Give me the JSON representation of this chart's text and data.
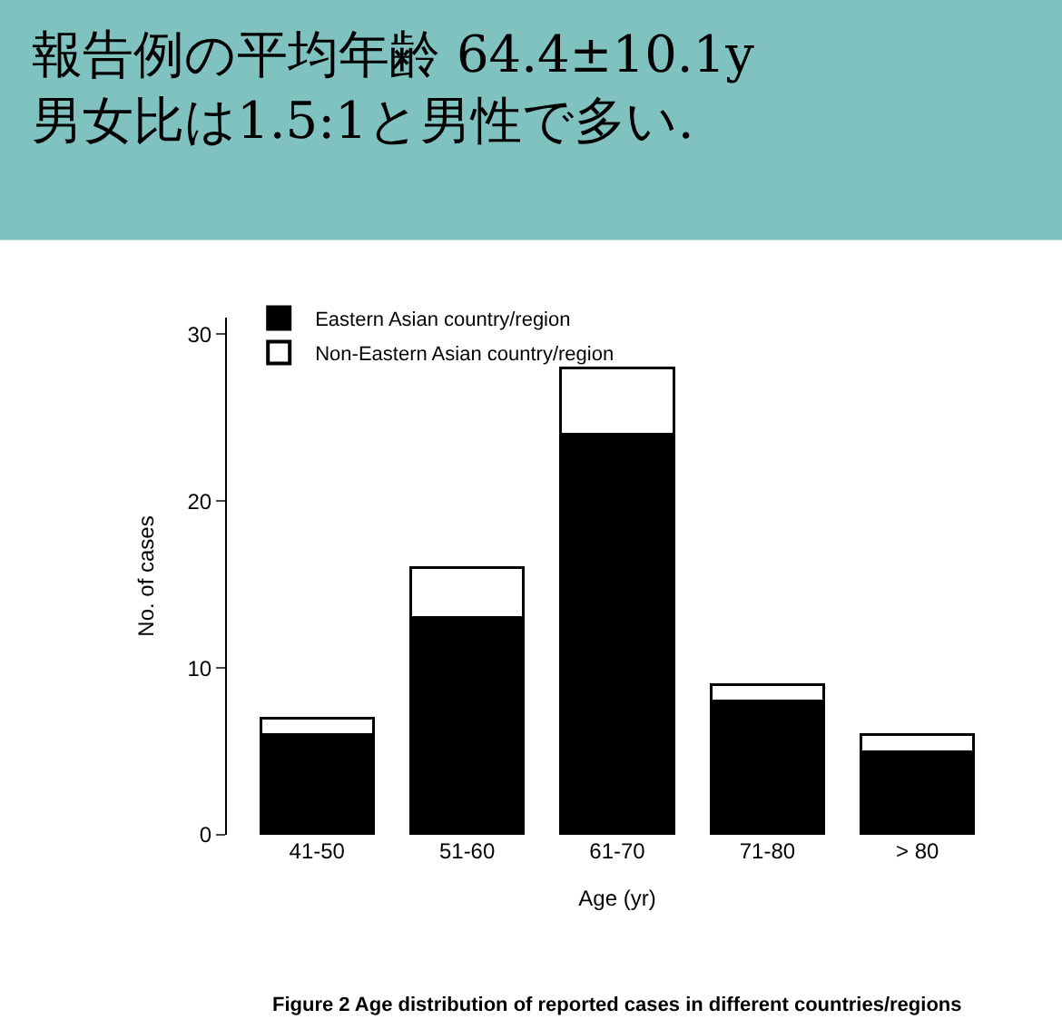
{
  "chart_data": {
    "type": "bar",
    "stacked": true,
    "title": "報告例の平均年齢 64.4±10.1y\n男女比は1.5:1と男性で多い.",
    "xlabel": "Age (yr)",
    "ylabel": "No. of cases",
    "categories": [
      "41-50",
      "51-60",
      "61-70",
      "71-80",
      "> 80"
    ],
    "series": [
      {
        "name": "Eastern Asian country/region",
        "color": "#000000",
        "values": [
          6,
          13,
          24,
          8,
          5
        ]
      },
      {
        "name": "Non-Eastern Asian country/region",
        "color": "#ffffff",
        "values": [
          1,
          3,
          4,
          1,
          1
        ]
      }
    ],
    "ylim": [
      0,
      31
    ],
    "yticks": [
      0,
      10,
      20,
      30
    ],
    "grid": false,
    "legend": "top left",
    "annotations": [
      "Figure 2 Age distribution of reported cases in different countries/regions"
    ]
  }
}
